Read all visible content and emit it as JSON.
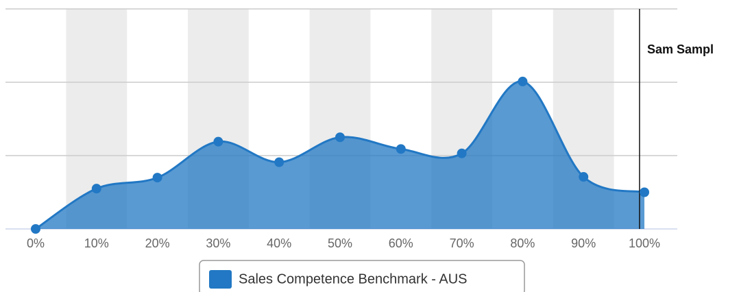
{
  "chart_data": {
    "type": "areaspline",
    "categories": [
      "0%",
      "10%",
      "20%",
      "30%",
      "40%",
      "50%",
      "60%",
      "70%",
      "80%",
      "90%",
      "100%"
    ],
    "series": [
      {
        "name": "Sales Competence Benchmark - AUS",
        "color": "#2278c4",
        "values": [
          0,
          0.55,
          0.7,
          1.19,
          0.91,
          1.25,
          1.09,
          1.03,
          2.01,
          0.71,
          0.5
        ]
      }
    ],
    "ylim": [
      0,
      3
    ],
    "yticks": [
      0,
      1,
      2,
      3
    ],
    "grid": true,
    "alternate_bands": true,
    "plot_line": {
      "x": 9.92,
      "label": "Sam Sampl"
    },
    "legend": "bottom"
  }
}
